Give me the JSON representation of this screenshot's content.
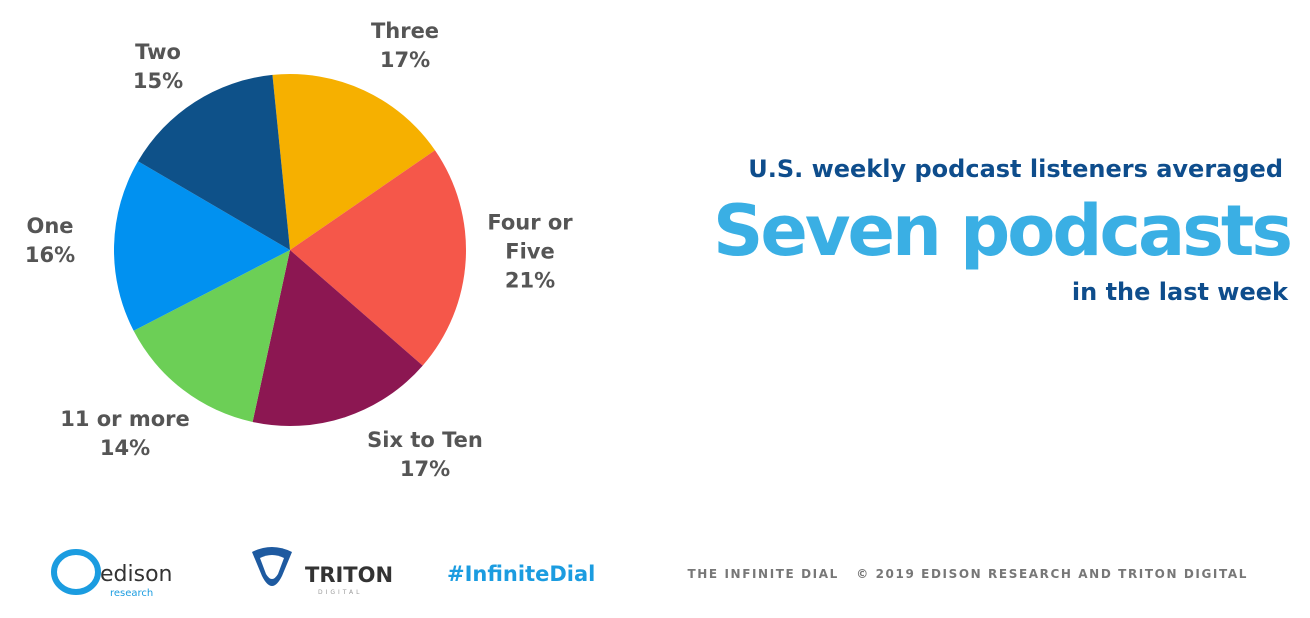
{
  "chart_data": {
    "type": "pie",
    "categories": [
      "Three",
      "Four or Five",
      "Six to Ten",
      "11 or more",
      "One",
      "Two"
    ],
    "values": [
      17,
      21,
      17,
      14,
      16,
      15
    ],
    "value_labels": [
      "17%",
      "21%",
      "17%",
      "14%",
      "16%",
      "15%"
    ],
    "colors": [
      "#f6b000",
      "#f5574a",
      "#8c1752",
      "#6ccf56",
      "#0191f0",
      "#0e5189"
    ]
  },
  "headline": {
    "lead": "U.S. weekly podcast listeners averaged",
    "main": "Seven podcasts",
    "tail": "in the last week"
  },
  "footer": {
    "edison": "edison",
    "edison_sub": "research",
    "triton": "TRITON",
    "triton_sub": "DIGITAL",
    "hashtag": "#InfiniteDial",
    "credit": "THE INFINITE DIAL   © 2019 EDISON RESEARCH AND TRITON DIGITAL"
  }
}
